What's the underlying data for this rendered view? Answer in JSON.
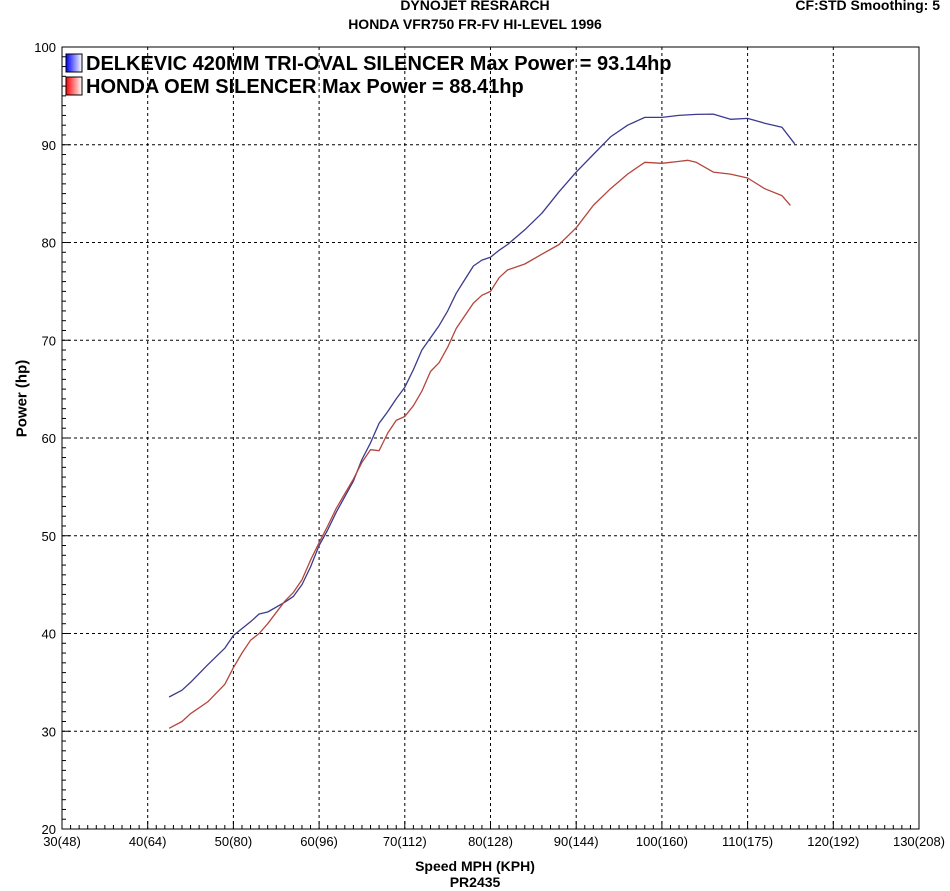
{
  "header": {
    "title": "DYNOJET RESRARCH",
    "subtitle": "HONDA VFR750 FR-FV HI-LEVEL 1996",
    "settings": "CF:STD Smoothing: 5"
  },
  "footer": {
    "code": "PR2435"
  },
  "chart_data": {
    "type": "line",
    "title": "DYNOJET RESRARCH",
    "subtitle": "HONDA VFR750 FR-FV HI-LEVEL 1996",
    "xlabel": "Speed MPH (KPH)",
    "ylabel": "Power (hp)",
    "xlim": [
      30,
      130
    ],
    "ylim": [
      20,
      100
    ],
    "x_ticks": [
      30,
      40,
      50,
      60,
      70,
      80,
      90,
      100,
      110,
      120,
      130
    ],
    "x_tick_labels": [
      "30(48)",
      "40(64)",
      "50(80)",
      "60(96)",
      "70(112)",
      "80(128)",
      "90(144)",
      "100(160)",
      "110(175)",
      "120(192)",
      "130(208)"
    ],
    "y_ticks": [
      20,
      30,
      40,
      50,
      60,
      70,
      80,
      90,
      100
    ],
    "y_tick_labels": [
      "20",
      "30",
      "40",
      "50",
      "60",
      "70",
      "80",
      "90",
      "100"
    ],
    "grid": true,
    "legend_position": "top-left",
    "series": [
      {
        "name": "DELKEVIC 420MM TRI-OVAL SILENCER Max Power = 93.14hp",
        "color": "#3b3b8e",
        "x": [
          42.5,
          44,
          45,
          47,
          49,
          50,
          52,
          53,
          54,
          56,
          57,
          58,
          59,
          60,
          61,
          62,
          64,
          65,
          66,
          67,
          68,
          69,
          70,
          71,
          72,
          74,
          75,
          76,
          77,
          78,
          79,
          80,
          81,
          82,
          84,
          86,
          88,
          90,
          92,
          94,
          96,
          98,
          100,
          102,
          104,
          106,
          108,
          110,
          112,
          114,
          115.5
        ],
        "y": [
          33.5,
          34.2,
          35.0,
          36.8,
          38.5,
          39.8,
          41.2,
          42.0,
          42.2,
          43.2,
          43.8,
          45.0,
          46.8,
          49.0,
          50.6,
          52.4,
          55.6,
          57.8,
          59.5,
          61.5,
          62.7,
          64.0,
          65.2,
          67.0,
          69.0,
          71.5,
          73.0,
          74.8,
          76.2,
          77.6,
          78.2,
          78.5,
          79.2,
          79.8,
          81.3,
          83.0,
          85.2,
          87.2,
          89.0,
          90.8,
          92.0,
          92.8,
          92.8,
          93.0,
          93.1,
          93.14,
          92.6,
          92.7,
          92.2,
          91.8,
          90.1
        ]
      },
      {
        "name": "HONDA OEM SILENCER Max Power = 88.41hp",
        "color": "#b4463c",
        "x": [
          42.5,
          44,
          45,
          47,
          49,
          50,
          51,
          52,
          53,
          54,
          56,
          57,
          58,
          59,
          60,
          61,
          62,
          63,
          64,
          65,
          66,
          67,
          68,
          69,
          70,
          71,
          72,
          73,
          74,
          75,
          76,
          77,
          78,
          79,
          80,
          81,
          82,
          84,
          86,
          88,
          90,
          92,
          94,
          96,
          98,
          100,
          102,
          103,
          104,
          106,
          108,
          110,
          112,
          114,
          115
        ],
        "y": [
          30.3,
          31.0,
          31.8,
          33.0,
          34.8,
          36.5,
          38.0,
          39.3,
          40.0,
          41.0,
          43.3,
          44.2,
          45.5,
          47.5,
          49.3,
          51.0,
          52.8,
          54.3,
          55.8,
          57.5,
          58.8,
          58.7,
          60.5,
          61.8,
          62.2,
          63.3,
          64.8,
          66.8,
          67.7,
          69.3,
          71.2,
          72.5,
          73.8,
          74.6,
          75.0,
          76.4,
          77.2,
          77.8,
          78.8,
          79.8,
          81.5,
          83.8,
          85.5,
          87.0,
          88.2,
          88.1,
          88.3,
          88.41,
          88.2,
          87.2,
          87.0,
          86.6,
          85.5,
          84.8,
          83.8
        ]
      }
    ]
  }
}
